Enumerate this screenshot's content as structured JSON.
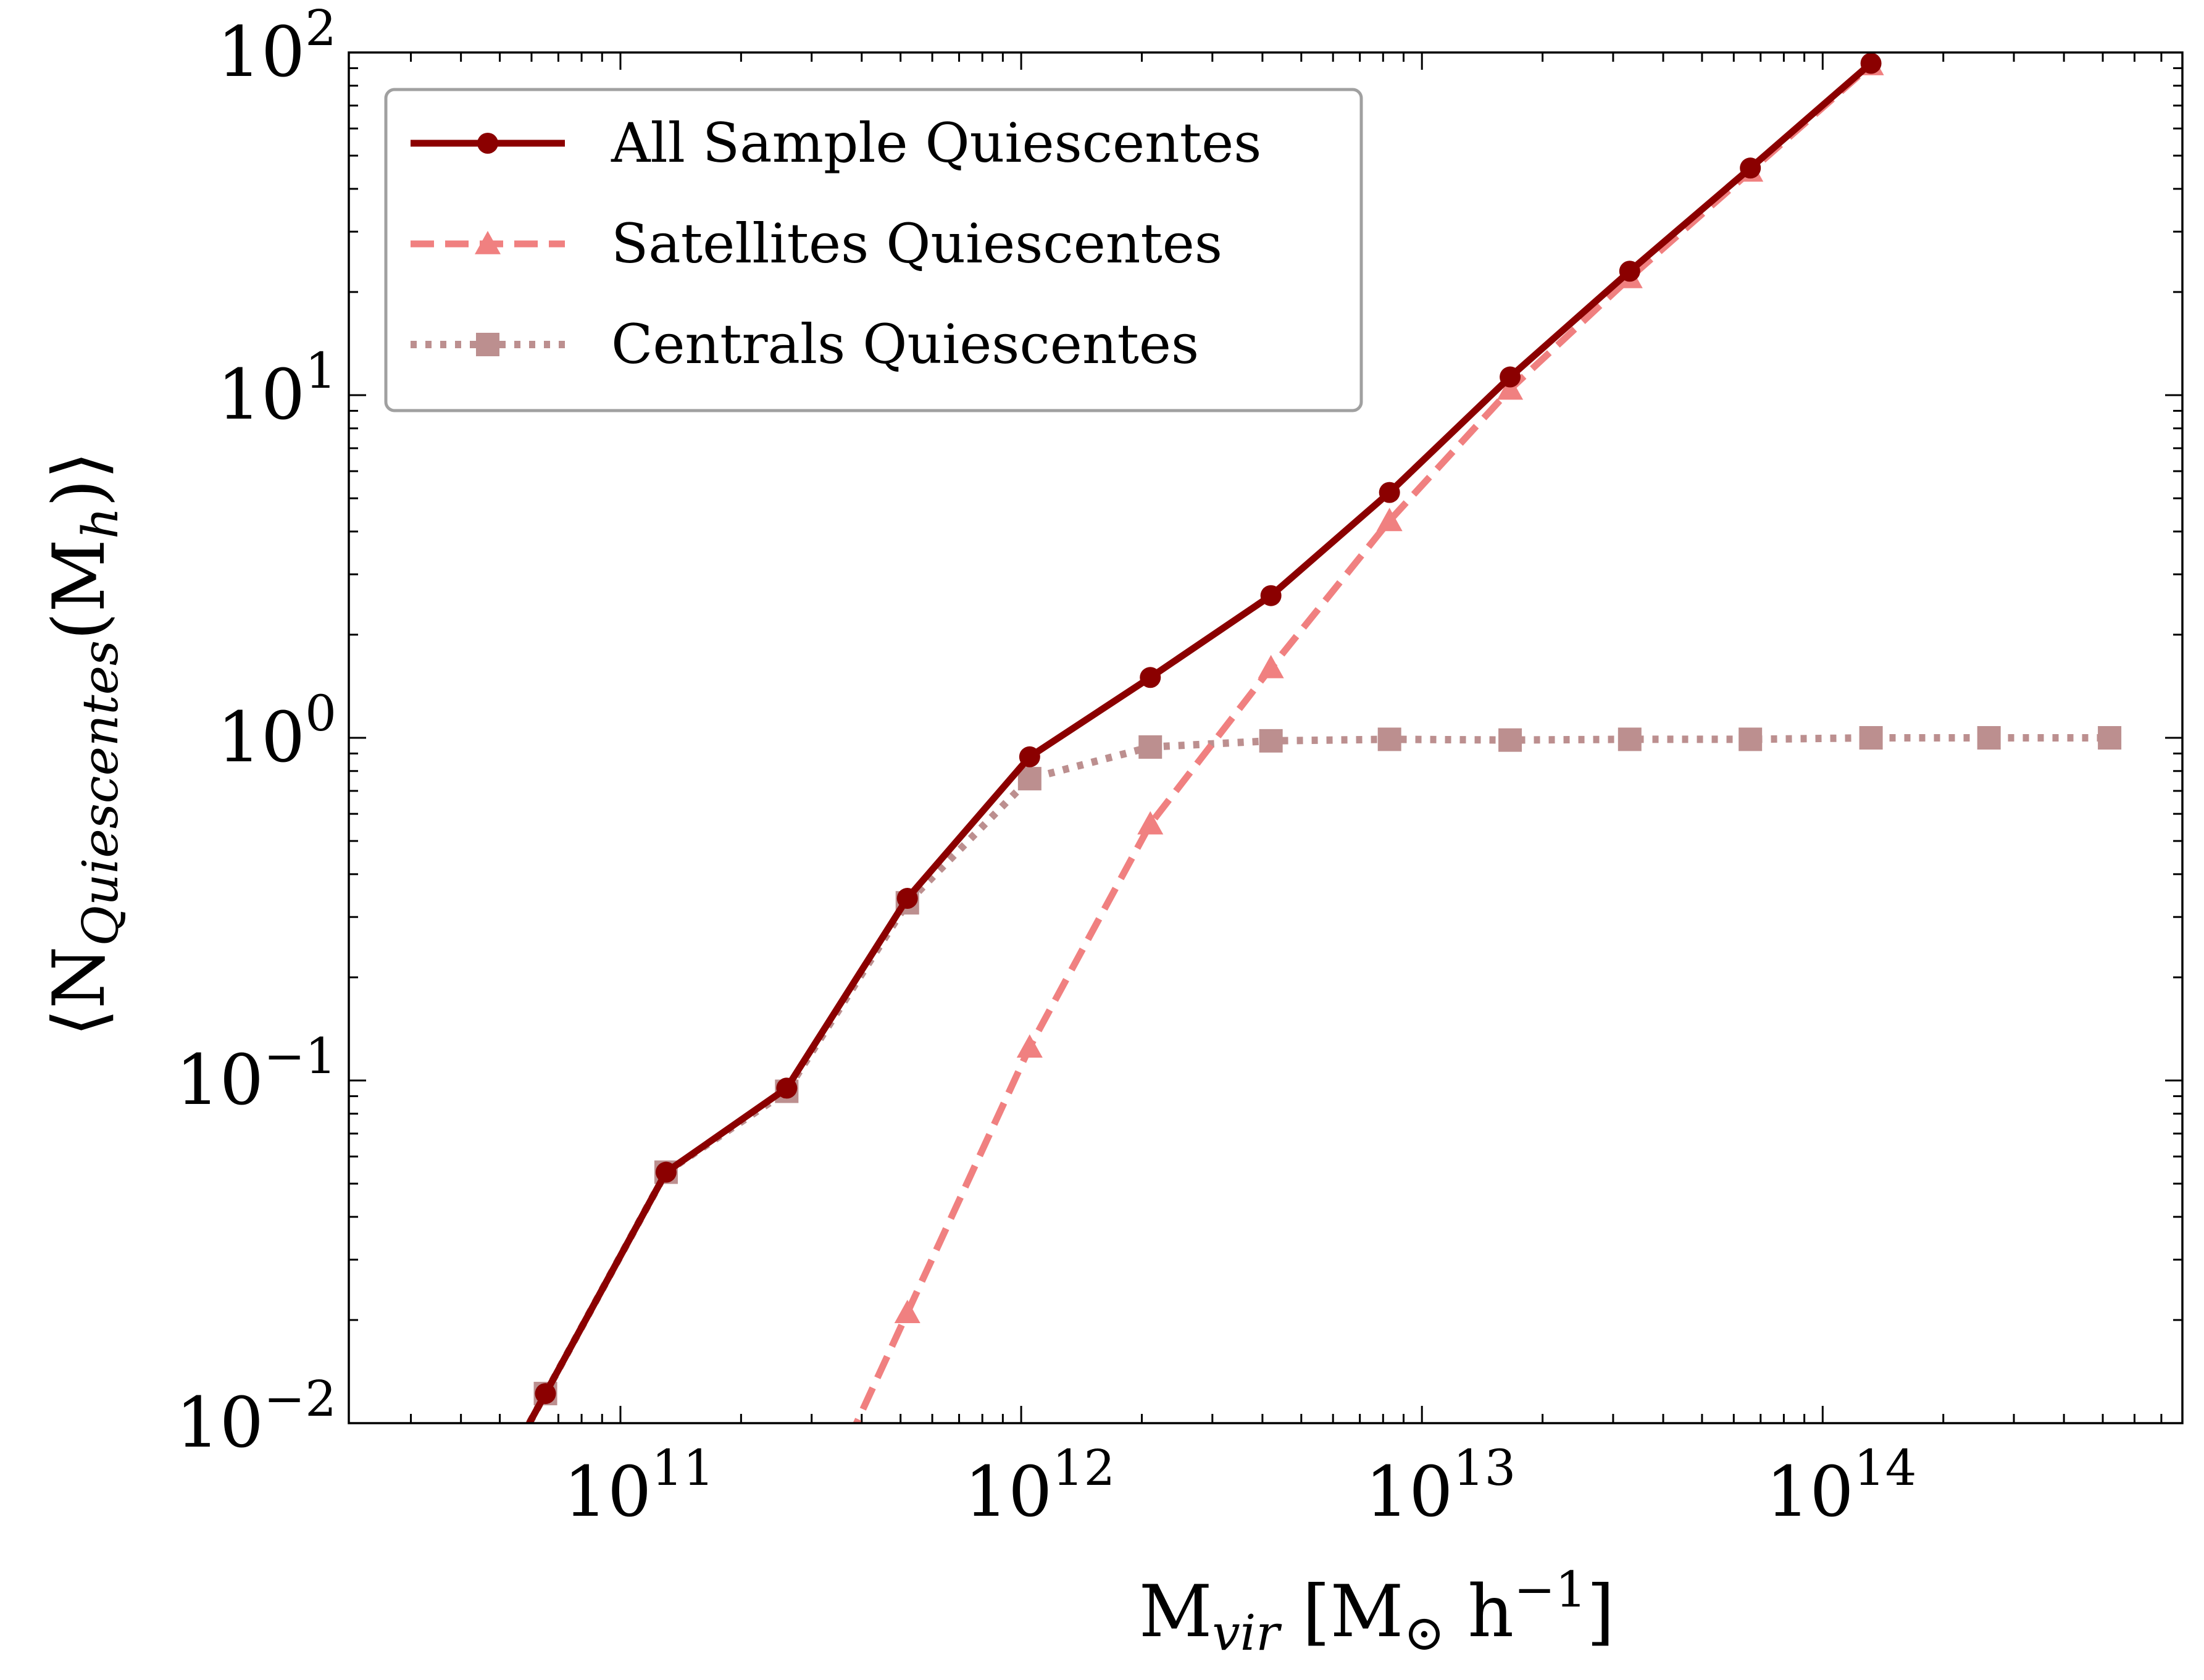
{
  "chart_data": {
    "type": "line",
    "title": "",
    "xlabel": {
      "base": "M",
      "sub": "vir",
      "bracket_open": "[",
      "unit_base": "M",
      "unit_sub": "⊙",
      "unit_rest": " h",
      "unit_sup": "−1",
      "bracket_close": "]"
    },
    "ylabel": {
      "open": "⟨",
      "base": "N",
      "sub": "Quiescentes",
      "paren_open": "(",
      "inner": "M",
      "inner_sub": "h",
      "paren_close": ")",
      "close": "⟩"
    },
    "xscale": "log",
    "yscale": "log",
    "xlim": [
      21000000000.0,
      790000000000000.0
    ],
    "ylim": [
      0.01,
      100
    ],
    "x_ticks": [
      {
        "value": 100000000000.0,
        "base": "10",
        "exp": "11"
      },
      {
        "value": 1000000000000.0,
        "base": "10",
        "exp": "12"
      },
      {
        "value": 10000000000000.0,
        "base": "10",
        "exp": "13"
      },
      {
        "value": 100000000000000.0,
        "base": "10",
        "exp": "14"
      }
    ],
    "y_ticks": [
      {
        "value": 0.01,
        "base": "10",
        "exp": "−2"
      },
      {
        "value": 0.1,
        "base": "10",
        "exp": "−1"
      },
      {
        "value": 1,
        "base": "10",
        "exp": "0"
      },
      {
        "value": 10,
        "base": "10",
        "exp": "1"
      },
      {
        "value": 100,
        "base": "10",
        "exp": "2"
      }
    ],
    "grid": false,
    "legend_position": "top-left",
    "series": [
      {
        "name": "All Sample Quiescentes",
        "color": "#8b0000",
        "linestyle": "solid",
        "marker": "circle",
        "x": [
          65000000000.0,
          130000000000.0,
          260000000000.0,
          520000000000.0,
          1050000000000.0,
          2100000000000.0,
          4200000000000.0,
          8300000000000.0,
          16600000000000.0,
          33000000000000.0,
          66000000000000.0,
          132000000000000.0
        ],
        "y": [
          0.0122,
          0.054,
          0.095,
          0.34,
          0.88,
          1.5,
          2.6,
          5.2,
          11.3,
          23.0,
          46.0,
          93.0
        ]
      },
      {
        "name": "Satellites Quiescentes",
        "color": "#f08080",
        "linestyle": "dashed",
        "marker": "triangle",
        "x": [
          520000000000.0,
          1050000000000.0,
          2100000000000.0,
          4200000000000.0,
          8300000000000.0,
          16600000000000.0,
          33000000000000.0,
          66000000000000.0,
          132000000000000.0
        ],
        "y": [
          0.021,
          0.125,
          0.56,
          1.6,
          4.3,
          10.4,
          22.0,
          45.0,
          92.0
        ]
      },
      {
        "name": "Centrals Quiescentes",
        "color": "#bc8f8f",
        "linestyle": "dotted",
        "marker": "square",
        "x": [
          65000000000.0,
          130000000000.0,
          260000000000.0,
          520000000000.0,
          1050000000000.0,
          2100000000000.0,
          4200000000000.0,
          8300000000000.0,
          16600000000000.0,
          33000000000000.0,
          66000000000000.0,
          132000000000000.0,
          260000000000000.0,
          520000000000000.0
        ],
        "y": [
          0.0122,
          0.054,
          0.093,
          0.33,
          0.76,
          0.94,
          0.98,
          0.99,
          0.985,
          0.99,
          0.99,
          1.0,
          1.0,
          1.0
        ]
      }
    ]
  }
}
